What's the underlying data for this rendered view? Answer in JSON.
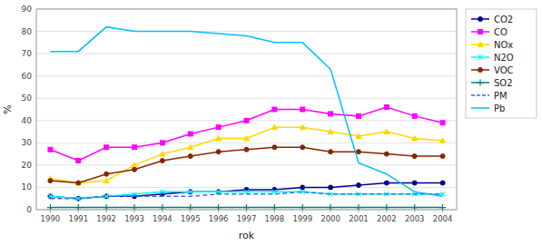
{
  "chart_data": {
    "type": "line",
    "categories": [
      "1990",
      "1991",
      "1992",
      "1993",
      "1994",
      "1995",
      "1996",
      "1997",
      "1998",
      "1999",
      "2000",
      "2001",
      "2002",
      "2003",
      "2004"
    ],
    "series": [
      {
        "name": "CO2",
        "color": "#00008B",
        "marker": "circle",
        "line_style": "solid",
        "values": [
          6,
          5,
          6,
          6,
          7,
          8,
          8,
          9,
          9,
          10,
          10,
          11,
          12,
          12,
          12
        ]
      },
      {
        "name": "CO",
        "color": "#FF00FF",
        "marker": "square",
        "line_style": "solid",
        "values": [
          27,
          22,
          28,
          28,
          30,
          34,
          37,
          40,
          45,
          45,
          43,
          42,
          46,
          42,
          39
        ]
      },
      {
        "name": "NOx",
        "color": "#FFD700",
        "marker": "triangle",
        "line_style": "solid",
        "values": [
          14,
          12,
          13,
          20,
          25,
          28,
          32,
          32,
          37,
          37,
          35,
          33,
          35,
          32,
          31
        ]
      },
      {
        "name": "N2O",
        "color": "#00FFFF",
        "marker": "x",
        "line_style": "solid",
        "values": [
          6,
          5,
          6,
          7,
          8,
          8,
          8,
          8,
          8,
          8,
          7,
          7,
          7,
          7,
          7
        ]
      },
      {
        "name": "VOC",
        "color": "#8B2500",
        "marker": "circle",
        "line_style": "solid",
        "values": [
          13,
          12,
          16,
          18,
          22,
          24,
          26,
          27,
          28,
          28,
          26,
          26,
          25,
          24,
          24
        ]
      },
      {
        "name": "SO2",
        "color": "#008080",
        "marker": "plus",
        "line_style": "solid",
        "values": [
          1,
          1,
          1,
          1,
          1,
          1,
          1,
          1,
          1,
          1,
          1,
          1,
          1,
          1,
          1
        ]
      },
      {
        "name": "PM",
        "color": "#4169E1",
        "marker": "none",
        "line_style": "dashed",
        "values": [
          5,
          5,
          6,
          6,
          6,
          6,
          7,
          7,
          7,
          8,
          7,
          7,
          7,
          7,
          7
        ]
      },
      {
        "name": "Pb",
        "color": "#00BFFF",
        "marker": "none",
        "line_style": "solid",
        "values": [
          71,
          71,
          82,
          80,
          80,
          80,
          79,
          78,
          75,
          75,
          63,
          21,
          16,
          8,
          6
        ]
      }
    ],
    "xlabel": "rok",
    "ylabel": "%",
    "ylim": [
      0,
      90
    ],
    "yticks": [
      0,
      10,
      20,
      30,
      40,
      50,
      60,
      70,
      80,
      90
    ],
    "grid": "y",
    "legend": "right"
  }
}
